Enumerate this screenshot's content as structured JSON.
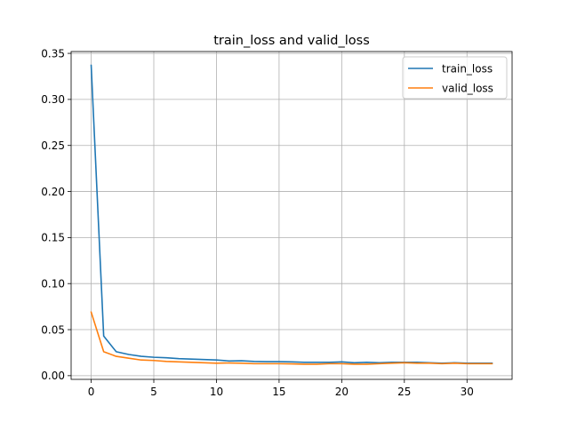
{
  "chart_data": {
    "type": "line",
    "title": "train_loss and valid_loss",
    "xlabel": "",
    "ylabel": "",
    "xlim": [
      -1.6,
      33.6
    ],
    "ylim": [
      -0.004,
      0.352
    ],
    "xticks": [
      0,
      5,
      10,
      15,
      20,
      25,
      30
    ],
    "yticks": [
      0.0,
      0.05,
      0.1,
      0.15,
      0.2,
      0.25,
      0.3,
      0.35
    ],
    "xtick_labels": [
      "0",
      "5",
      "10",
      "15",
      "20",
      "25",
      "30"
    ],
    "ytick_labels": [
      "0.00",
      "0.05",
      "0.10",
      "0.15",
      "0.20",
      "0.25",
      "0.30",
      "0.35"
    ],
    "grid": true,
    "legend_position": "top-right",
    "x": [
      0,
      1,
      2,
      3,
      4,
      5,
      6,
      7,
      8,
      9,
      10,
      11,
      12,
      13,
      14,
      15,
      16,
      17,
      18,
      19,
      20,
      21,
      22,
      23,
      24,
      25,
      26,
      27,
      28,
      29,
      30,
      31,
      32
    ],
    "series": [
      {
        "name": "train_loss",
        "color": "#1f77b4",
        "values": [
          0.337,
          0.043,
          0.026,
          0.023,
          0.021,
          0.02,
          0.0195,
          0.0185,
          0.018,
          0.0175,
          0.017,
          0.016,
          0.0162,
          0.0155,
          0.0152,
          0.0152,
          0.015,
          0.0145,
          0.0145,
          0.0145,
          0.015,
          0.014,
          0.0145,
          0.014,
          0.0145,
          0.0145,
          0.0145,
          0.014,
          0.0135,
          0.014,
          0.0135,
          0.0135,
          0.0135
        ]
      },
      {
        "name": "valid_loss",
        "color": "#ff7f0e",
        "values": [
          0.069,
          0.026,
          0.021,
          0.019,
          0.017,
          0.0165,
          0.0155,
          0.015,
          0.0145,
          0.014,
          0.0135,
          0.0138,
          0.0135,
          0.013,
          0.013,
          0.013,
          0.0128,
          0.0125,
          0.0125,
          0.013,
          0.013,
          0.0125,
          0.0125,
          0.013,
          0.0135,
          0.014,
          0.0135,
          0.0135,
          0.013,
          0.0135,
          0.013,
          0.013,
          0.013
        ]
      }
    ]
  }
}
